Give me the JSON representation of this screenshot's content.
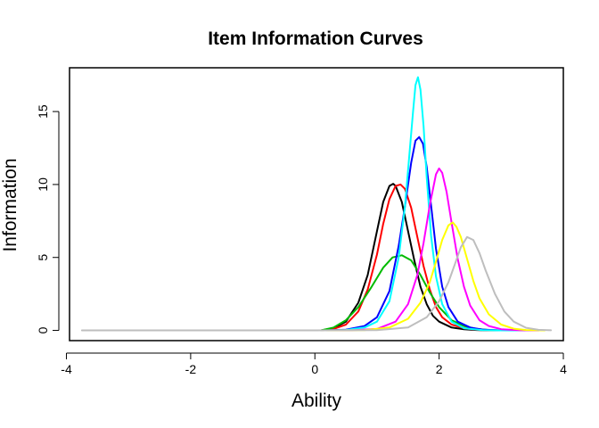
{
  "chart_data": {
    "type": "line",
    "title": "Item Information Curves",
    "xlabel": "Ability",
    "ylabel": "Information",
    "xlim": [
      -3.95,
      4.0
    ],
    "ylim": [
      -0.7,
      18.0
    ],
    "xticks": [
      -4,
      -2,
      0,
      2,
      4
    ],
    "yticks": [
      0,
      5,
      10,
      15
    ],
    "grid": false,
    "legend": "none",
    "series": [
      {
        "color": "#000000",
        "x": [
          0.1,
          0.3,
          0.5,
          0.7,
          0.85,
          1.0,
          1.1,
          1.2,
          1.26,
          1.3,
          1.4,
          1.5,
          1.6,
          1.7,
          1.8,
          1.9,
          2.0,
          2.2,
          2.4,
          2.6,
          2.8,
          3.0,
          3.2,
          3.5
        ],
        "y": [
          0.0,
          0.15,
          0.6,
          1.9,
          3.8,
          6.8,
          8.8,
          9.9,
          10.05,
          9.9,
          8.8,
          6.8,
          4.8,
          3.0,
          1.8,
          1.0,
          0.6,
          0.2,
          0.08,
          0.03,
          0.0,
          0.0,
          0.0,
          0.0
        ]
      },
      {
        "color": "#ff0000",
        "x": [
          0.1,
          0.3,
          0.5,
          0.7,
          0.85,
          1.0,
          1.1,
          1.2,
          1.3,
          1.38,
          1.45,
          1.55,
          1.65,
          1.75,
          1.85,
          1.95,
          2.05,
          2.2,
          2.4,
          2.6,
          2.8,
          3.0,
          3.2,
          3.5
        ],
        "y": [
          0.0,
          0.1,
          0.4,
          1.3,
          2.8,
          5.2,
          7.3,
          9.0,
          9.9,
          10.0,
          9.7,
          8.4,
          6.4,
          4.4,
          2.8,
          1.6,
          0.9,
          0.4,
          0.15,
          0.05,
          0.0,
          0.0,
          0.0,
          0.0
        ]
      },
      {
        "color": "#00bb00",
        "x": [
          0.1,
          0.3,
          0.5,
          0.7,
          0.9,
          1.1,
          1.25,
          1.4,
          1.55,
          1.7,
          1.85,
          2.0,
          2.2,
          2.4,
          2.6,
          2.8,
          3.0,
          3.2,
          3.5
        ],
        "y": [
          0.0,
          0.2,
          0.7,
          1.6,
          2.9,
          4.3,
          5.0,
          5.15,
          4.8,
          3.8,
          2.6,
          1.6,
          0.7,
          0.3,
          0.1,
          0.03,
          0.0,
          0.0,
          0.0
        ]
      },
      {
        "color": "#0000ff",
        "x": [
          0.2,
          0.5,
          0.8,
          1.0,
          1.2,
          1.35,
          1.45,
          1.55,
          1.62,
          1.68,
          1.74,
          1.8,
          1.88,
          1.95,
          2.05,
          2.15,
          2.3,
          2.5,
          2.7,
          3.0,
          3.3,
          3.6
        ],
        "y": [
          0.0,
          0.05,
          0.3,
          0.9,
          2.7,
          5.8,
          8.5,
          11.5,
          13.0,
          13.25,
          12.8,
          11.2,
          8.2,
          5.6,
          3.0,
          1.6,
          0.6,
          0.2,
          0.06,
          0.0,
          0.0,
          0.0
        ]
      },
      {
        "color": "#00ffff",
        "x": [
          0.2,
          0.5,
          0.8,
          1.0,
          1.2,
          1.35,
          1.45,
          1.52,
          1.58,
          1.62,
          1.66,
          1.7,
          1.75,
          1.8,
          1.87,
          1.95,
          2.05,
          2.2,
          2.4,
          2.7,
          3.0,
          3.3,
          3.6
        ],
        "y": [
          0.0,
          0.03,
          0.2,
          0.6,
          2.0,
          5.0,
          8.5,
          12.0,
          15.0,
          16.8,
          17.35,
          16.5,
          14.0,
          10.5,
          6.5,
          3.7,
          1.8,
          0.6,
          0.15,
          0.02,
          0.0,
          0.0,
          0.0
        ]
      },
      {
        "color": "#ff00ff",
        "x": [
          0.2,
          0.6,
          1.0,
          1.3,
          1.5,
          1.65,
          1.75,
          1.85,
          1.95,
          2.0,
          2.05,
          2.12,
          2.2,
          2.3,
          2.4,
          2.5,
          2.65,
          2.8,
          3.0,
          3.3,
          3.6
        ],
        "y": [
          0.0,
          0.01,
          0.1,
          0.6,
          1.8,
          3.8,
          6.0,
          8.6,
          10.7,
          11.1,
          10.8,
          9.5,
          7.4,
          4.9,
          3.0,
          1.7,
          0.7,
          0.3,
          0.08,
          0.01,
          0.0
        ]
      },
      {
        "color": "#ffff00",
        "x": [
          0.2,
          0.8,
          1.2,
          1.5,
          1.7,
          1.85,
          1.95,
          2.05,
          2.15,
          2.22,
          2.28,
          2.35,
          2.45,
          2.55,
          2.65,
          2.8,
          3.0,
          3.2,
          3.4,
          3.7
        ],
        "y": [
          0.0,
          0.02,
          0.2,
          0.8,
          1.9,
          3.3,
          4.7,
          6.2,
          7.2,
          7.4,
          7.1,
          6.4,
          4.9,
          3.4,
          2.2,
          1.1,
          0.4,
          0.12,
          0.03,
          0.0
        ]
      },
      {
        "color": "#bebebe",
        "x": [
          -3.75,
          -3.0,
          -2.0,
          -1.0,
          0.0,
          1.0,
          1.5,
          1.8,
          2.0,
          2.15,
          2.25,
          2.35,
          2.45,
          2.55,
          2.65,
          2.75,
          2.9,
          3.05,
          3.2,
          3.4,
          3.6,
          3.8
        ],
        "y": [
          0.0,
          0.0,
          0.0,
          0.0,
          0.0,
          0.02,
          0.2,
          0.9,
          2.0,
          3.3,
          4.5,
          5.7,
          6.4,
          6.2,
          5.3,
          4.1,
          2.5,
          1.3,
          0.6,
          0.18,
          0.04,
          0.01
        ]
      }
    ]
  }
}
